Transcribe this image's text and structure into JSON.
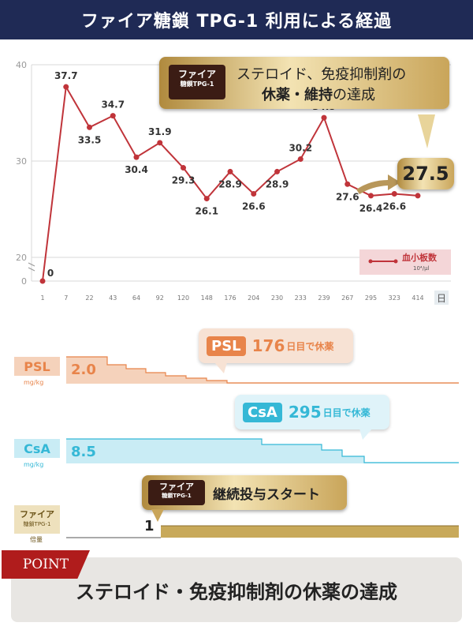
{
  "header": {
    "title": "ファイア糖鎖 TPG-1 利用による経過"
  },
  "chart_data": {
    "type": "line",
    "x": [
      "1",
      "7",
      "22",
      "43",
      "64",
      "92",
      "120",
      "148",
      "176",
      "204",
      "230",
      "233",
      "239",
      "267",
      "295",
      "323",
      "414"
    ],
    "x_unit": "日",
    "y_ticks": [
      "40",
      "30",
      "20",
      "0"
    ],
    "series": [
      {
        "name": "血小板数",
        "unit": "10⁴/μl",
        "values": [
          0,
          37.7,
          33.5,
          34.7,
          30.4,
          31.9,
          29.3,
          26.1,
          28.9,
          26.6,
          28.9,
          30.2,
          34.5,
          27.6,
          26.4,
          26.6,
          26.4
        ],
        "labels": [
          "0",
          "37.7",
          "33.5",
          "34.7",
          "30.4",
          "31.9",
          "29.3",
          "26.1",
          "28.9",
          "26.6",
          "28.9",
          "30.2",
          "34.5",
          "27.6",
          "26.4",
          "26.6",
          ""
        ]
      }
    ],
    "callout_value": "27.5",
    "colors": {
      "line": "#c0343a",
      "grid": "#d9d9d9"
    }
  },
  "callout": {
    "tag_line1": "ファイア",
    "tag_line2": "糖鎖TPG-1",
    "text_line1": "ステロイド、免疫抑制剤の",
    "text_line2_bold": "休薬・維持",
    "text_line2_rest": "の達成"
  },
  "drugs": {
    "psl": {
      "label": "PSL",
      "unit": "mg/kg",
      "start_value": "2.0",
      "pill": "PSL",
      "day": "176",
      "text": "日目で休薬",
      "color": "#e8844a",
      "bg": "#f5d2bb"
    },
    "csa": {
      "label": "CsA",
      "unit": "mg/kg",
      "start_value": "8.5",
      "pill": "CsA",
      "day": "295",
      "text": "日目で休薬",
      "color": "#35b8d6",
      "bg": "#c9ecf5"
    },
    "tpg": {
      "label_line1": "ファイア",
      "label_line2": "糖鎖TPG-1",
      "unit": "倍量",
      "start_value": "1",
      "tag_line1": "ファイア",
      "tag_line2": "糖鎖TPG-1",
      "text": "継続投与スタート",
      "color": "#c8a95a"
    }
  },
  "point": {
    "badge": "POINT",
    "text": "ステロイド・免疫抑制剤の休薬の達成"
  }
}
